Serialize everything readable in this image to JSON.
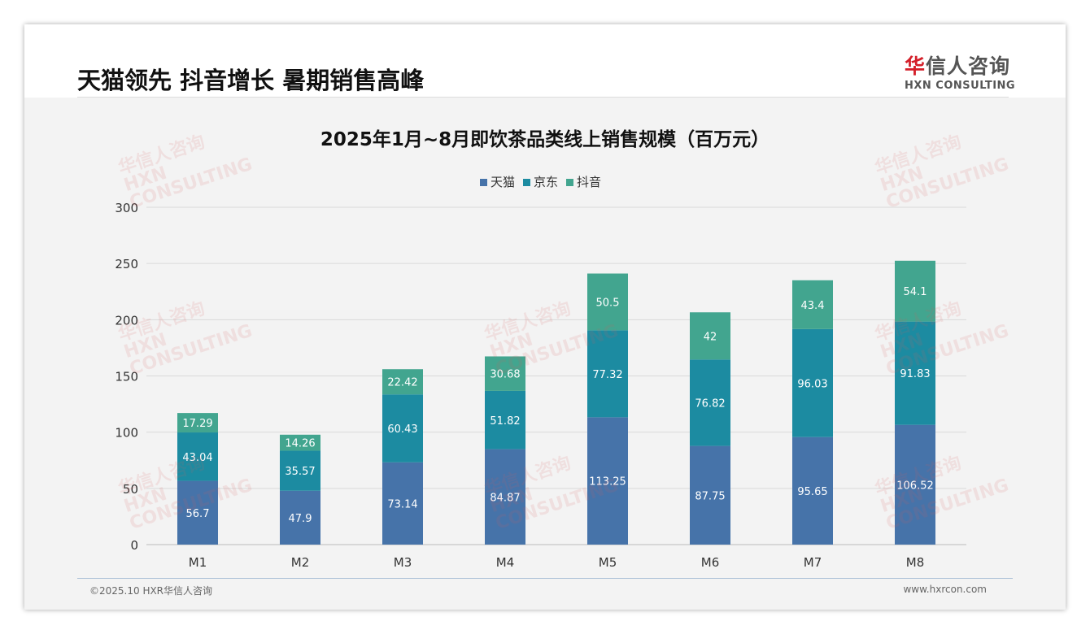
{
  "header": {
    "title": "天猫领先 抖音增长 暑期销售高峰",
    "logo_cn_red": "华",
    "logo_cn": "信人咨询",
    "logo_en": "HXN CONSULTING"
  },
  "footer": {
    "copyright": "©2025.10 HXR华信人咨询",
    "url": "www.hxrcon.com"
  },
  "watermark": "华信人咨询 HXN CONSULTING",
  "chart_data": {
    "type": "bar",
    "stacked": true,
    "title": "2025年1月~8月即饮茶品类线上销售规模（百万元）",
    "categories": [
      "M1",
      "M2",
      "M3",
      "M4",
      "M5",
      "M6",
      "M7",
      "M8"
    ],
    "series": [
      {
        "name": "天猫",
        "color": "#4673a9",
        "values": [
          56.7,
          47.9,
          73.14,
          84.87,
          113.25,
          87.75,
          95.65,
          106.52
        ]
      },
      {
        "name": "京东",
        "color": "#1c8ba1",
        "values": [
          43.04,
          35.57,
          60.43,
          51.82,
          77.32,
          76.82,
          96.03,
          91.83
        ]
      },
      {
        "name": "抖音",
        "color": "#42a58f",
        "values": [
          17.29,
          14.26,
          22.42,
          30.68,
          50.5,
          42,
          43.4,
          54.1
        ]
      }
    ],
    "ylim": [
      0,
      300
    ],
    "yticks": [
      0,
      50,
      100,
      150,
      200,
      250,
      300
    ],
    "grid": true,
    "legend": "top-center",
    "xlabel": "",
    "ylabel": ""
  }
}
